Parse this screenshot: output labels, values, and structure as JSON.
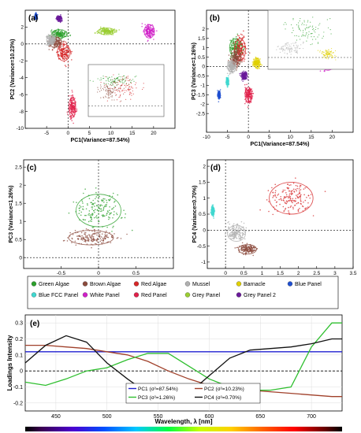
{
  "figure": {
    "legend_items": [
      {
        "label": "Green Algae",
        "color": "#2ca02c"
      },
      {
        "label": "Brown Algae",
        "color": "#8b4a3c"
      },
      {
        "label": "Red Algae",
        "color": "#d62728"
      },
      {
        "label": "Mussel",
        "color": "#b0b0b0"
      },
      {
        "label": "Barnacle",
        "color": "#e0d000"
      },
      {
        "label": "Blue Panel",
        "color": "#1f4fd0"
      },
      {
        "label": "Blue FCC Panel",
        "color": "#40d8d0"
      },
      {
        "label": "White Panel",
        "color": "#d020c8"
      },
      {
        "label": "Red Panel",
        "color": "#e0204a"
      },
      {
        "label": "Grey Panel",
        "color": "#9acd32"
      },
      {
        "label": "Grey Panel 2",
        "color": "#6a1a9a"
      }
    ]
  },
  "chart_data": [
    {
      "panel": "(a)",
      "type": "scatter",
      "xlabel": "PC1(Variance=87.54%)",
      "ylabel": "PC2 (Variance=10.23%)",
      "xlim": [
        -10,
        25
      ],
      "ylim": [
        -10,
        4
      ],
      "xticks": [
        "-5",
        "0",
        "5",
        "10",
        "15",
        "20"
      ],
      "yticks": [
        "2",
        "0",
        "-2",
        "-4",
        "-6",
        "-8",
        "-10"
      ],
      "clusters": [
        {
          "name": "Green Algae",
          "center": [
            -2,
            1.2
          ],
          "spread": [
            1.8,
            0.5
          ],
          "color": "#2ca02c"
        },
        {
          "name": "Brown Algae",
          "center": [
            -3,
            0.2
          ],
          "spread": [
            1.5,
            0.6
          ],
          "color": "#8b4a3c"
        },
        {
          "name": "Red Algae",
          "center": [
            -1,
            -1
          ],
          "spread": [
            1.5,
            1
          ],
          "color": "#d62728"
        },
        {
          "name": "Mussel",
          "center": [
            -4,
            0.5
          ],
          "spread": [
            1,
            0.6
          ],
          "color": "#b0b0b0"
        },
        {
          "name": "Grey Panel",
          "center": [
            9,
            1.5
          ],
          "spread": [
            2,
            0.4
          ],
          "color": "#9acd32"
        },
        {
          "name": "White Panel",
          "center": [
            19,
            1.5
          ],
          "spread": [
            1.2,
            0.8
          ],
          "color": "#d020c8"
        },
        {
          "name": "Grey Panel 2",
          "center": [
            -2,
            3
          ],
          "spread": [
            0.6,
            0.3
          ],
          "color": "#6a1a9a"
        },
        {
          "name": "Blue Panel",
          "center": [
            -7.5,
            3.3
          ],
          "spread": [
            0.3,
            0.3
          ],
          "color": "#1f4fd0"
        },
        {
          "name": "Red Panel",
          "center": [
            1,
            -7.5
          ],
          "spread": [
            0.8,
            1.2
          ],
          "color": "#e0204a"
        }
      ]
    },
    {
      "panel": "(b)",
      "type": "scatter",
      "xlabel": "PC1(Variance=87.54%)",
      "ylabel": "PC3 (Variance=1.26%)",
      "xlim": [
        -10,
        25
      ],
      "ylim": [
        -3.5,
        3
      ],
      "xticks": [
        "-10",
        "-5",
        "0",
        "5",
        "10",
        "15",
        "20"
      ],
      "yticks": [
        "2",
        "1.5",
        "1",
        "0.5",
        "0",
        "-0.5",
        "-1",
        "-1.5",
        "-2",
        "-2.5"
      ],
      "clusters": [
        {
          "name": "Green Algae",
          "center": [
            -3,
            1
          ],
          "spread": [
            1.5,
            0.5
          ],
          "color": "#2ca02c"
        },
        {
          "name": "Red Algae",
          "center": [
            -2,
            0.9
          ],
          "spread": [
            1.3,
            0.6
          ],
          "color": "#d62728"
        },
        {
          "name": "Brown Algae",
          "center": [
            -3,
            0.4
          ],
          "spread": [
            1.2,
            0.4
          ],
          "color": "#8b4a3c"
        },
        {
          "name": "Mussel",
          "center": [
            -4,
            0
          ],
          "spread": [
            1,
            0.3
          ],
          "color": "#b0b0b0"
        },
        {
          "name": "Barnacle",
          "center": [
            2,
            0.2
          ],
          "spread": [
            0.8,
            0.25
          ],
          "color": "#e0d000"
        },
        {
          "name": "Grey Panel",
          "center": [
            10,
            0.2
          ],
          "spread": [
            2,
            0.15
          ],
          "color": "#9acd32"
        },
        {
          "name": "White Panel",
          "center": [
            19,
            0.1
          ],
          "spread": [
            1.3,
            0.3
          ],
          "color": "#d020c8"
        },
        {
          "name": "Grey Panel 2",
          "center": [
            -1,
            -0.5
          ],
          "spread": [
            0.7,
            0.2
          ],
          "color": "#6a1a9a"
        },
        {
          "name": "Red Panel",
          "center": [
            0,
            -1.5
          ],
          "spread": [
            0.8,
            0.4
          ],
          "color": "#e0204a"
        },
        {
          "name": "Blue Panel",
          "center": [
            -7,
            -1.5
          ],
          "spread": [
            0.3,
            0.2
          ],
          "color": "#1f4fd0"
        },
        {
          "name": "Blue FCC Panel",
          "center": [
            -5,
            -0.8
          ],
          "spread": [
            0.3,
            0.2
          ],
          "color": "#40d8d0"
        }
      ]
    },
    {
      "panel": "(c)",
      "type": "scatter",
      "xlabel": "PC2(Variance=10.23%)",
      "ylabel": "PC3 (Variance=1.26%)",
      "xlim": [
        -1,
        1
      ],
      "ylim": [
        -0.3,
        2.7
      ],
      "xticks": [
        "-0.5",
        "0",
        "0.5"
      ],
      "yticks": [
        "2.5",
        "2",
        "1.5",
        "1",
        "0.5",
        "0"
      ],
      "clusters": [
        {
          "name": "Green Algae",
          "center": [
            0,
            1.3
          ],
          "spread": [
            0.3,
            0.45
          ],
          "color": "#2ca02c"
        },
        {
          "name": "Brown Algae",
          "center": [
            -0.1,
            0.55
          ],
          "spread": [
            0.3,
            0.2
          ],
          "color": "#8b4a3c"
        }
      ]
    },
    {
      "panel": "(d)",
      "type": "scatter",
      "xlabel": "PC3(Variance=1.26%)",
      "ylabel": "PC4 (Variance=0.70%)",
      "xlim": [
        -0.5,
        3.5
      ],
      "ylim": [
        -1.2,
        2.2
      ],
      "xticks": [
        "0",
        "0.5",
        "1",
        "1.5",
        "2",
        "2.5",
        "3",
        "3.5"
      ],
      "yticks": [
        "2",
        "1.5",
        "1",
        "0.5",
        "0",
        "-0.5",
        "-1"
      ],
      "clusters": [
        {
          "name": "Red Algae",
          "center": [
            1.8,
            1
          ],
          "spread": [
            0.6,
            0.5
          ],
          "color": "#d62728"
        },
        {
          "name": "Mussel",
          "center": [
            0.3,
            -0.1
          ],
          "spread": [
            0.25,
            0.25
          ],
          "color": "#b0b0b0"
        },
        {
          "name": "Brown Algae",
          "center": [
            0.6,
            -0.6
          ],
          "spread": [
            0.25,
            0.15
          ],
          "color": "#8b4a3c"
        },
        {
          "name": "Blue FCC Panel",
          "center": [
            -0.35,
            0.6
          ],
          "spread": [
            0.04,
            0.15
          ],
          "color": "#40d8d0"
        }
      ]
    },
    {
      "panel": "(e)",
      "type": "line",
      "xlabel": "Wavelength, λ [nm]",
      "ylabel": "Loadings Intensity",
      "xlim": [
        420,
        730
      ],
      "ylim": [
        -0.25,
        0.35
      ],
      "xticks": [
        "450",
        "500",
        "550",
        "600",
        "650",
        "700"
      ],
      "yticks": [
        "0.3",
        "0.2",
        "0.1",
        "0",
        "-0.1",
        "-0.2"
      ],
      "x": [
        420,
        440,
        460,
        480,
        500,
        520,
        540,
        560,
        580,
        600,
        620,
        640,
        660,
        680,
        700,
        720,
        730
      ],
      "series": [
        {
          "name": "PC1 (σ²=87.54%)",
          "color": "#1f1fd0",
          "values": [
            0.12,
            0.12,
            0.12,
            0.12,
            0.12,
            0.12,
            0.12,
            0.12,
            0.12,
            0.12,
            0.12,
            0.12,
            0.12,
            0.12,
            0.12,
            0.12,
            0.12
          ]
        },
        {
          "name": "PC2 (σ²=10.23%)",
          "color": "#a0402a",
          "values": [
            0.16,
            0.16,
            0.15,
            0.14,
            0.12,
            0.1,
            0.06,
            0.0,
            -0.05,
            -0.09,
            -0.11,
            -0.12,
            -0.13,
            -0.14,
            -0.15,
            -0.16,
            -0.16
          ]
        },
        {
          "name": "PC3 (σ²=1.26%)",
          "color": "#2fbf2f",
          "values": [
            -0.07,
            -0.09,
            -0.05,
            0.0,
            0.02,
            0.07,
            0.11,
            0.11,
            0.03,
            -0.05,
            -0.1,
            -0.12,
            -0.12,
            -0.1,
            0.15,
            0.3,
            0.3
          ]
        },
        {
          "name": "PC4 (σ²=0.70%)",
          "color": "#111111",
          "values": [
            0.05,
            0.16,
            0.22,
            0.18,
            0.05,
            -0.05,
            -0.14,
            -0.19,
            -0.14,
            -0.03,
            0.08,
            0.13,
            0.14,
            0.15,
            0.17,
            0.2,
            0.2
          ]
        }
      ]
    }
  ]
}
